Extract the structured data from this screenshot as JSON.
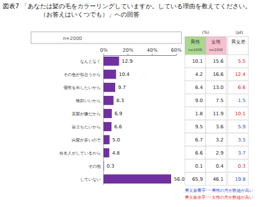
{
  "chart_data": {
    "type": "bar",
    "orientation": "horizontal",
    "title": [
      "図表7 「あなたは髪の毛をカラーリングしていますか。している理由を教えてください。",
      "（お答えはいくつでも）」への回答"
    ],
    "subtitle": "n=2000",
    "categories": [
      "なんとなく",
      "その色が似合うから",
      "個性を出したいから",
      "格好いいから",
      "黒髪が嫌だから",
      "目立ちたいから",
      "白髪が多いので",
      "有名人がしているから",
      "その他",
      "していない"
    ],
    "values": [
      12.9,
      10.4,
      9.7,
      8.3,
      6.9,
      6.6,
      5.0,
      4.8,
      0.3,
      56.0
    ],
    "value_labels": [
      "12.9",
      "10.4",
      "9.7",
      "8.3",
      "6.9",
      "6.6",
      "5.0",
      "4.8",
      "0.3",
      "56.0"
    ],
    "color": "#7030a0",
    "xlim": [
      0,
      60
    ],
    "xticks": [
      {
        "value": 0,
        "label": "0%"
      },
      {
        "value": 20,
        "label": "20%"
      },
      {
        "value": 40,
        "label": "40%"
      },
      {
        "value": 60,
        "label": "60%"
      }
    ],
    "data_labels": true,
    "grid": false
  },
  "table": {
    "units": [
      "(%)",
      "(pt)"
    ],
    "columns": [
      {
        "label": "男性",
        "sub": "n=1000",
        "color": "#a9d98f"
      },
      {
        "label": "女性",
        "sub": "n=1000",
        "color": "#f7bfd0"
      },
      {
        "label": "男女差"
      }
    ],
    "rows": [
      [
        "10.1",
        "15.6",
        "5.5"
      ],
      [
        "4.2",
        "16.6",
        "12.4"
      ],
      [
        "6.4",
        "13.0",
        "6.6"
      ],
      [
        "9.0",
        "7.5",
        "1.5"
      ],
      [
        "1.8",
        "11.9",
        "10.1"
      ],
      [
        "9.5",
        "3.6",
        "5.9"
      ],
      [
        "6.7",
        "3.2",
        "3.5"
      ],
      [
        "6.6",
        "2.9",
        "3.7"
      ],
      [
        "0.1",
        "0.4",
        "0.3"
      ],
      [
        "65.9",
        "46.1",
        "19.8"
      ]
    ],
    "diff_colors": [
      "#e02020",
      "#e02020",
      "#e02020",
      "#1f4fd1",
      "#e02020",
      "#1f4fd1",
      "#1f4fd1",
      "#1f4fd1",
      "#e02020",
      "#1f4fd1"
    ],
    "notes": [
      {
        "text": "男女差青字･･･男性の方が数値が高い",
        "color": "#1f4fd1"
      },
      {
        "text": "男女差赤字･･･女性の方が数値が高い",
        "color": "#e02020"
      }
    ]
  }
}
